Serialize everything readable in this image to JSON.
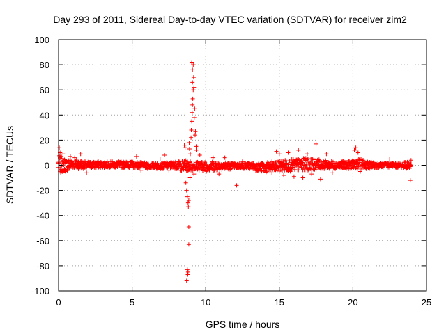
{
  "chart_data": {
    "type": "scatter",
    "title": "Day 293 of 2011, Sidereal Day-to-day VTEC variation (SDTVAR) for receiver zim2",
    "xlabel": "GPS time / hours",
    "ylabel": "SDTVAR / TECUs",
    "xlim": [
      0,
      25
    ],
    "ylim": [
      -100,
      100
    ],
    "xticks": [
      "0",
      "5",
      "10",
      "15",
      "20",
      "25"
    ],
    "yticks": [
      "100",
      "80",
      "60",
      "40",
      "20",
      "0",
      "-20",
      "-40",
      "-60",
      "-80",
      "-100"
    ],
    "grid": true,
    "marker": "+",
    "color": "#ff0000",
    "series": [
      {
        "name": "SDTVAR",
        "envelope": [
          {
            "x": 0.0,
            "low": -6,
            "high": 8
          },
          {
            "x": 0.5,
            "low": -5,
            "high": 5
          },
          {
            "x": 1.0,
            "low": -3,
            "high": 5
          },
          {
            "x": 2.0,
            "low": -3,
            "high": 3
          },
          {
            "x": 3.0,
            "low": -2,
            "high": 3
          },
          {
            "x": 4.0,
            "low": -2,
            "high": 3
          },
          {
            "x": 5.0,
            "low": -2,
            "high": 3
          },
          {
            "x": 6.0,
            "low": -3,
            "high": 2
          },
          {
            "x": 7.0,
            "low": -3,
            "high": 2
          },
          {
            "x": 8.0,
            "low": -3,
            "high": 3
          },
          {
            "x": 8.5,
            "low": -5,
            "high": 4
          },
          {
            "x": 9.5,
            "low": -4,
            "high": 3
          },
          {
            "x": 10.0,
            "low": -5,
            "high": 3
          },
          {
            "x": 11.0,
            "low": -4,
            "high": 3
          },
          {
            "x": 12.0,
            "low": -3,
            "high": 2
          },
          {
            "x": 13.0,
            "low": -3,
            "high": 2
          },
          {
            "x": 14.0,
            "low": -6,
            "high": 2
          },
          {
            "x": 15.0,
            "low": -5,
            "high": 4
          },
          {
            "x": 16.0,
            "low": -5,
            "high": 5
          },
          {
            "x": 17.0,
            "low": -4,
            "high": 6
          },
          {
            "x": 18.0,
            "low": -3,
            "high": 4
          },
          {
            "x": 19.0,
            "low": -3,
            "high": 3
          },
          {
            "x": 20.0,
            "low": -3,
            "high": 4
          },
          {
            "x": 20.3,
            "low": -3,
            "high": 6
          },
          {
            "x": 21.0,
            "low": -3,
            "high": 3
          },
          {
            "x": 22.0,
            "low": -2,
            "high": 2
          },
          {
            "x": 23.0,
            "low": -2,
            "high": 2
          },
          {
            "x": 24.0,
            "low": -3,
            "high": 3
          }
        ],
        "outliers": [
          {
            "x": 0.05,
            "y": 14
          },
          {
            "x": 0.1,
            "y": 10
          },
          {
            "x": 0.15,
            "y": -6
          },
          {
            "x": 0.3,
            "y": 9
          },
          {
            "x": 0.5,
            "y": -5
          },
          {
            "x": 0.8,
            "y": 7
          },
          {
            "x": 1.1,
            "y": 6
          },
          {
            "x": 1.5,
            "y": 9
          },
          {
            "x": 1.9,
            "y": -6
          },
          {
            "x": 5.3,
            "y": 7
          },
          {
            "x": 5.6,
            "y": -4
          },
          {
            "x": 6.9,
            "y": 5
          },
          {
            "x": 7.2,
            "y": 8
          },
          {
            "x": 7.5,
            "y": -4
          },
          {
            "x": 8.55,
            "y": 16
          },
          {
            "x": 8.6,
            "y": 14
          },
          {
            "x": 8.65,
            "y": -14
          },
          {
            "x": 8.7,
            "y": -20
          },
          {
            "x": 8.75,
            "y": -25
          },
          {
            "x": 8.8,
            "y": -30
          },
          {
            "x": 8.82,
            "y": -33
          },
          {
            "x": 8.85,
            "y": -28
          },
          {
            "x": 8.88,
            "y": 18
          },
          {
            "x": 8.9,
            "y": 13
          },
          {
            "x": 8.93,
            "y": -10
          },
          {
            "x": 8.95,
            "y": 9
          },
          {
            "x": 8.85,
            "y": -49
          },
          {
            "x": 8.85,
            "y": -63
          },
          {
            "x": 8.75,
            "y": -83
          },
          {
            "x": 8.8,
            "y": -85
          },
          {
            "x": 8.78,
            "y": -87
          },
          {
            "x": 8.7,
            "y": -92
          },
          {
            "x": 9.0,
            "y": 22
          },
          {
            "x": 9.02,
            "y": 28
          },
          {
            "x": 9.05,
            "y": 35
          },
          {
            "x": 9.08,
            "y": 42
          },
          {
            "x": 9.1,
            "y": 48
          },
          {
            "x": 9.12,
            "y": 53
          },
          {
            "x": 9.15,
            "y": 60
          },
          {
            "x": 9.1,
            "y": 66
          },
          {
            "x": 9.18,
            "y": 70
          },
          {
            "x": 9.1,
            "y": 76
          },
          {
            "x": 9.15,
            "y": 80
          },
          {
            "x": 9.05,
            "y": 82
          },
          {
            "x": 9.2,
            "y": 62
          },
          {
            "x": 9.25,
            "y": 45
          },
          {
            "x": 9.22,
            "y": 38
          },
          {
            "x": 9.3,
            "y": 27
          },
          {
            "x": 9.28,
            "y": 24
          },
          {
            "x": 9.35,
            "y": 15
          },
          {
            "x": 9.2,
            "y": -7
          },
          {
            "x": 9.35,
            "y": 12
          },
          {
            "x": 9.6,
            "y": 8
          },
          {
            "x": 10.5,
            "y": 6
          },
          {
            "x": 10.9,
            "y": -7
          },
          {
            "x": 11.3,
            "y": 6
          },
          {
            "x": 12.1,
            "y": -16
          },
          {
            "x": 12.5,
            "y": 3
          },
          {
            "x": 14.5,
            "y": -6
          },
          {
            "x": 14.8,
            "y": 11
          },
          {
            "x": 15.0,
            "y": 9
          },
          {
            "x": 15.3,
            "y": -8
          },
          {
            "x": 15.6,
            "y": 10
          },
          {
            "x": 16.0,
            "y": -9
          },
          {
            "x": 16.3,
            "y": 12
          },
          {
            "x": 16.6,
            "y": -10
          },
          {
            "x": 16.9,
            "y": 9
          },
          {
            "x": 17.2,
            "y": -7
          },
          {
            "x": 17.5,
            "y": 17
          },
          {
            "x": 17.8,
            "y": -11
          },
          {
            "x": 18.2,
            "y": 9
          },
          {
            "x": 18.6,
            "y": -6
          },
          {
            "x": 20.1,
            "y": 12
          },
          {
            "x": 20.2,
            "y": 14
          },
          {
            "x": 20.35,
            "y": 10
          },
          {
            "x": 20.5,
            "y": -5
          },
          {
            "x": 22.5,
            "y": 5
          },
          {
            "x": 23.9,
            "y": -12
          },
          {
            "x": 23.95,
            "y": 4
          }
        ]
      }
    ]
  }
}
